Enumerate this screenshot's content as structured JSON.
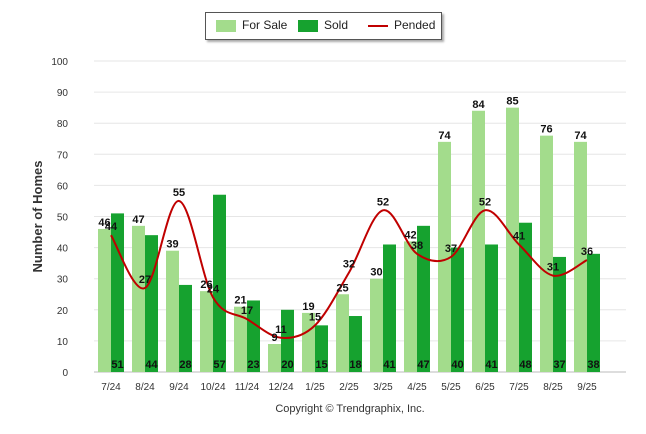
{
  "chart_data": {
    "type": "bar",
    "categories": [
      "7/24",
      "8/24",
      "9/24",
      "10/24",
      "11/24",
      "12/24",
      "1/25",
      "2/25",
      "3/25",
      "4/25",
      "5/25",
      "6/25",
      "7/25",
      "8/25",
      "9/25"
    ],
    "series": [
      {
        "name": "For Sale",
        "type": "bar",
        "color": "#a3dc8c",
        "values": [
          46,
          47,
          39,
          26,
          21,
          9,
          19,
          25,
          30,
          42,
          74,
          84,
          85,
          76,
          74
        ]
      },
      {
        "name": "Sold",
        "type": "bar",
        "color": "#16a22f",
        "values": [
          51,
          44,
          28,
          57,
          23,
          20,
          15,
          18,
          41,
          47,
          40,
          41,
          48,
          37,
          38
        ]
      },
      {
        "name": "Pended",
        "type": "line",
        "color": "#c00000",
        "values": [
          44,
          27,
          55,
          24,
          17,
          11,
          15,
          32,
          52,
          38,
          37,
          52,
          41,
          31,
          36
        ]
      }
    ],
    "title": "",
    "xlabel": "",
    "ylabel": "Number of Homes",
    "ylim": [
      0,
      100
    ],
    "yticks": [
      0,
      10,
      20,
      30,
      40,
      50,
      60,
      70,
      80,
      90,
      100
    ],
    "legend_position": "top-center",
    "footer": "Copyright © Trendgraphix, Inc."
  }
}
